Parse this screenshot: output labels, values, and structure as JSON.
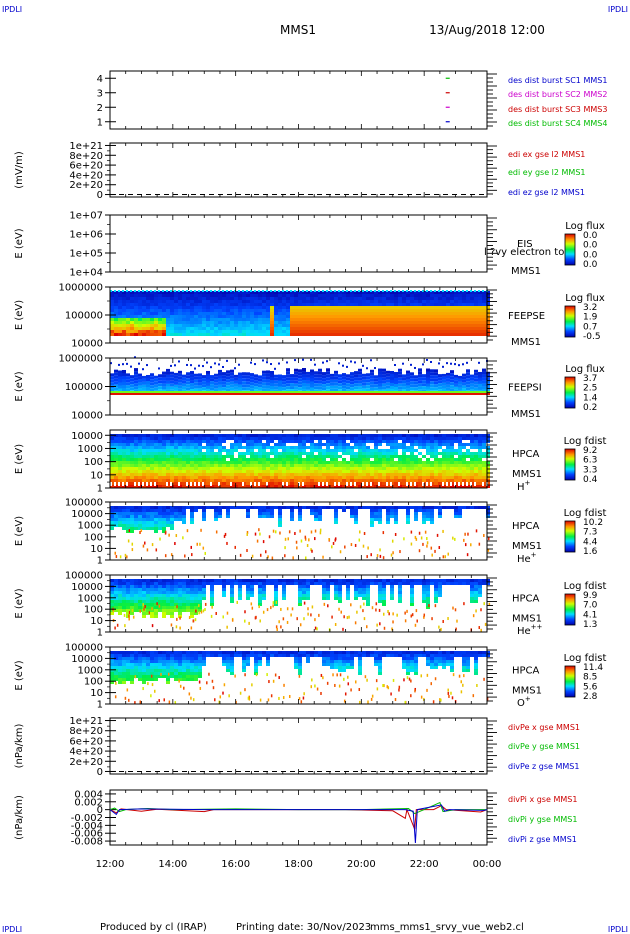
{
  "header": {
    "corner_left": "IPDLI",
    "corner_right": "IPDLI",
    "spacecraft": "MMS1",
    "datetime": "13/Aug/2018 12:00"
  },
  "footer": {
    "produced_by": "Produced by cl (IRAP)",
    "printing_date": "Printing date: 30/Nov/2023",
    "file_name": "mms_mms1_srvy_vue_web2.cl",
    "corner_left": "IPDLI",
    "corner_right": "IPDLI"
  },
  "chart_data": {
    "type": "multi-panel time series",
    "x_range": [
      "12:00",
      "00:00"
    ],
    "x_ticks": [
      "12:00",
      "14:00",
      "16:00",
      "18:00",
      "20:00",
      "22:00",
      "00:00"
    ],
    "x_tick_hours": [
      12,
      14,
      16,
      18,
      20,
      22,
      24
    ],
    "panels": [
      {
        "id": "dist",
        "kind": "line",
        "ylabel": "",
        "y_ticks": [
          "4",
          "3",
          "2",
          "1"
        ],
        "y_tick_values": [
          4,
          3,
          2,
          1
        ],
        "ylim": [
          0.5,
          4.5
        ],
        "legend": [
          {
            "text": "des dist burst SC1 MMS1",
            "color": "#0000cc"
          },
          {
            "text": "des dist burst SC2 MMS2",
            "color": "#cc00cc"
          },
          {
            "text": "des dist burst SC3 MMS3",
            "color": "#cc0000"
          },
          {
            "text": "des dist burst SC4 MMS4",
            "color": "#00bb00"
          }
        ],
        "series": [
          {
            "color": "#00bb00",
            "points": [
              [
                22.75,
                4
              ]
            ]
          },
          {
            "color": "#cc0000",
            "points": [
              [
                22.75,
                3
              ]
            ]
          },
          {
            "color": "#cc00cc",
            "points": [
              [
                22.75,
                2
              ]
            ]
          },
          {
            "color": "#0000cc",
            "points": [
              [
                22.75,
                1
              ]
            ]
          }
        ]
      },
      {
        "id": "edi",
        "kind": "line",
        "ylabel": "(mV/m)",
        "y_ticks": [
          "1e+21",
          "8e+20",
          "6e+20",
          "4e+20",
          "2e+20",
          "0"
        ],
        "y_tick_values": [
          10,
          8,
          6,
          4,
          2,
          0
        ],
        "ylim": [
          -0.5,
          10.5
        ],
        "zero_line": true,
        "legend": [
          {
            "text": "edi ex gse l2 MMS1",
            "color": "#cc0000"
          },
          {
            "text": "edi ey gse l2 MMS1",
            "color": "#00bb00"
          },
          {
            "text": "edi ez gse l2 MMS1",
            "color": "#0000cc"
          }
        ],
        "series": []
      },
      {
        "id": "eis",
        "kind": "empty-spectrogram",
        "ylabel": "E (eV)",
        "y_ticks": [
          "1e+07",
          "1e+06",
          "1e+05",
          "1e+04"
        ],
        "y_tick_values": [
          7,
          6,
          5,
          4
        ],
        "ylim": [
          4,
          7
        ],
        "instrument": "EIS",
        "spacecraft": "MMS1",
        "overlay_text": "l ?vy electron to",
        "colorbar": {
          "label": "Log flux",
          "ticks": [
            "0.0",
            "0.0",
            "0.0",
            "0.0"
          ]
        }
      },
      {
        "id": "feepse",
        "kind": "spectrogram",
        "ylabel": "E (eV)",
        "y_ticks": [
          "1000000",
          "100000",
          "10000"
        ],
        "y_tick_values": [
          6,
          5,
          4
        ],
        "ylim": [
          4,
          6
        ],
        "instrument": "FEEPSE",
        "spacecraft": "MMS1",
        "colorbar": {
          "label": "Log flux",
          "ticks": [
            "3.2",
            "1.9",
            "0.7",
            "-0.5"
          ]
        }
      },
      {
        "id": "feepsi",
        "kind": "spectrogram",
        "ylabel": "E (eV)",
        "y_ticks": [
          "1000000",
          "100000",
          "10000"
        ],
        "y_tick_values": [
          6,
          5,
          4
        ],
        "ylim": [
          4,
          6
        ],
        "instrument": "FEEPSI",
        "spacecraft": "MMS1",
        "colorbar": {
          "label": "Log flux",
          "ticks": [
            "3.7",
            "2.5",
            "1.4",
            "0.2"
          ]
        }
      },
      {
        "id": "hpca_h",
        "kind": "spectrogram",
        "ylabel": "E (eV)",
        "y_ticks": [
          "10000",
          "1000",
          "100",
          "10",
          "1"
        ],
        "y_tick_values": [
          4,
          3,
          2,
          1,
          0
        ],
        "ylim": [
          0,
          4.4
        ],
        "instrument": "HPCA",
        "spacecraft": "MMS1",
        "species": "H",
        "charge": "+",
        "colorbar": {
          "label": "Log fdist",
          "ticks": [
            "9.2",
            "6.3",
            "3.3",
            "0.4"
          ]
        }
      },
      {
        "id": "hpca_he",
        "kind": "spectrogram",
        "ylabel": "E (eV)",
        "y_ticks": [
          "100000",
          "10000",
          "1000",
          "100",
          "10",
          "1"
        ],
        "y_tick_values": [
          5,
          4,
          3,
          2,
          1,
          0
        ],
        "ylim": [
          0,
          5
        ],
        "instrument": "HPCA",
        "spacecraft": "MMS1",
        "species": "He",
        "charge": "+",
        "colorbar": {
          "label": "Log fdist",
          "ticks": [
            "10.2",
            "7.3",
            "4.4",
            "1.6"
          ]
        }
      },
      {
        "id": "hpca_hepp",
        "kind": "spectrogram",
        "ylabel": "E (eV)",
        "y_ticks": [
          "100000",
          "10000",
          "1000",
          "100",
          "10",
          "1"
        ],
        "y_tick_values": [
          5,
          4,
          3,
          2,
          1,
          0
        ],
        "ylim": [
          0,
          5
        ],
        "instrument": "HPCA",
        "spacecraft": "MMS1",
        "species": "He",
        "charge": "++",
        "colorbar": {
          "label": "Log fdist",
          "ticks": [
            "9.9",
            "7.0",
            "4.1",
            "1.3"
          ]
        }
      },
      {
        "id": "hpca_o",
        "kind": "spectrogram",
        "ylabel": "E (eV)",
        "y_ticks": [
          "100000",
          "10000",
          "1000",
          "100",
          "10",
          "1"
        ],
        "y_tick_values": [
          5,
          4,
          3,
          2,
          1,
          0
        ],
        "ylim": [
          0,
          5
        ],
        "instrument": "HPCA",
        "spacecraft": "MMS1",
        "species": "O",
        "charge": "+",
        "colorbar": {
          "label": "Log fdist",
          "ticks": [
            "11.4",
            "8.5",
            "5.6",
            "2.8"
          ]
        }
      },
      {
        "id": "divpe",
        "kind": "line",
        "ylabel": "(nPa/km)",
        "y_ticks": [
          "1e+21",
          "8e+20",
          "6e+20",
          "4e+20",
          "2e+20",
          "0"
        ],
        "y_tick_values": [
          10,
          8,
          6,
          4,
          2,
          0
        ],
        "ylim": [
          -0.5,
          10.5
        ],
        "zero_line": true,
        "legend": [
          {
            "text": "divPe x gse MMS1",
            "color": "#cc0000"
          },
          {
            "text": "divPe y gse MMS1",
            "color": "#00bb00"
          },
          {
            "text": "divPe z gse MMS1",
            "color": "#0000cc"
          }
        ],
        "series": []
      },
      {
        "id": "divpi",
        "kind": "line",
        "ylabel": "(nPa/km)",
        "y_ticks": [
          "0.004",
          "0.002",
          "0",
          "-0.002",
          "-0.004",
          "-0.006",
          "-0.008"
        ],
        "y_tick_values": [
          0.004,
          0.002,
          0,
          -0.002,
          -0.004,
          -0.006,
          -0.008
        ],
        "ylim": [
          -0.009,
          0.005
        ],
        "legend": [
          {
            "text": "divPi x gse MMS1",
            "color": "#cc0000"
          },
          {
            "text": "divPi y gse MMS1",
            "color": "#00bb00"
          },
          {
            "text": "divPi z gse MMS1",
            "color": "#0000cc"
          }
        ],
        "series": [
          {
            "name": "x",
            "color": "#cc0000",
            "points": [
              [
                12.0,
                0.0
              ],
              [
                12.2,
                -0.0008
              ],
              [
                12.35,
                0.0002
              ],
              [
                13.0,
                -0.0004
              ],
              [
                13.5,
                0.0001
              ],
              [
                15.0,
                -0.0005
              ],
              [
                15.3,
                0.0
              ],
              [
                17.0,
                0.0
              ],
              [
                19.5,
                0.0
              ],
              [
                21.0,
                -0.0003
              ],
              [
                21.4,
                -0.0022
              ],
              [
                21.45,
                0.0
              ],
              [
                21.7,
                -0.005
              ],
              [
                21.75,
                0.0
              ],
              [
                22.3,
                0.0
              ],
              [
                22.55,
                0.001
              ],
              [
                22.7,
                0.0
              ],
              [
                23.8,
                -0.0006
              ],
              [
                24.0,
                0.0
              ]
            ]
          },
          {
            "name": "y",
            "color": "#00bb00",
            "points": [
              [
                12.0,
                0.0
              ],
              [
                12.15,
                0.0004
              ],
              [
                12.3,
                -0.0005
              ],
              [
                12.5,
                0.0
              ],
              [
                13.2,
                0.0003
              ],
              [
                14.0,
                0.0
              ],
              [
                16.0,
                0.0002
              ],
              [
                18.0,
                0.0
              ],
              [
                20.0,
                0.0
              ],
              [
                21.5,
                0.0003
              ],
              [
                21.7,
                -0.001
              ],
              [
                22.0,
                0.0
              ],
              [
                22.5,
                0.0018
              ],
              [
                22.6,
                -0.0005
              ],
              [
                23.0,
                0.0
              ],
              [
                24.0,
                0.0
              ]
            ]
          },
          {
            "name": "z",
            "color": "#0000cc",
            "points": [
              [
                12.0,
                0.0
              ],
              [
                12.2,
                -0.0012
              ],
              [
                12.3,
                0.0
              ],
              [
                13.0,
                0.0002
              ],
              [
                15.0,
                0.0
              ],
              [
                17.0,
                0.0
              ],
              [
                19.5,
                0.0
              ],
              [
                21.4,
                0.0
              ],
              [
                21.65,
                -0.0004
              ],
              [
                21.72,
                -0.0085
              ],
              [
                21.78,
                0.0
              ],
              [
                22.55,
                0.0012
              ],
              [
                22.65,
                -0.0004
              ],
              [
                22.8,
                0.0
              ],
              [
                23.9,
                -0.0002
              ],
              [
                24.0,
                0.0
              ]
            ]
          }
        ]
      }
    ]
  }
}
